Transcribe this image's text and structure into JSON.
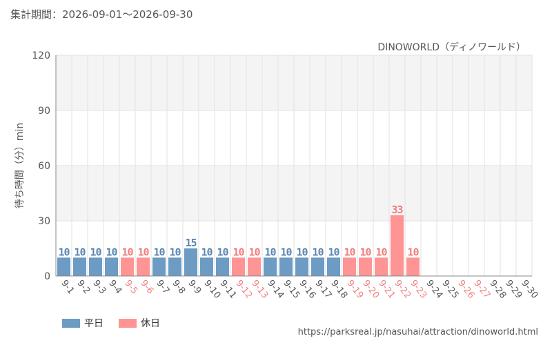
{
  "header": {
    "period_label": "集計期間：",
    "period_range": "2026-09-01～2026-09-30"
  },
  "attraction_name": "DINOWORLD（ディノワールド）",
  "legend": {
    "weekday_label": "平日",
    "holiday_label": "休日"
  },
  "footer_url": "https://parksreal.jp/nasuhai/attraction/dinoworld.html",
  "colors": {
    "weekday": "#6c9bc4",
    "holiday": "#ff9494",
    "weekday_text": "#5a86b0",
    "holiday_text": "#f07e7e",
    "band": "#f4f4f4",
    "grid": "#e2e2e2"
  },
  "chart_data": {
    "type": "bar",
    "title": "",
    "xlabel": "",
    "ylabel": "待ち時間（分）min",
    "ylim": [
      0,
      120
    ],
    "yticks": [
      "0",
      "30",
      "60",
      "90",
      "120"
    ],
    "categories": [
      "9-1",
      "9-2",
      "9-3",
      "9-4",
      "9-5",
      "9-6",
      "9-7",
      "9-8",
      "9-9",
      "9-10",
      "9-11",
      "9-12",
      "9-13",
      "9-14",
      "9-15",
      "9-16",
      "9-17",
      "9-18",
      "9-19",
      "9-20",
      "9-21",
      "9-22",
      "9-23",
      "9-24",
      "9-25",
      "9-26",
      "9-27",
      "9-28",
      "9-29",
      "9-30"
    ],
    "values": [
      10,
      10,
      10,
      10,
      10,
      10,
      10,
      10,
      15,
      10,
      10,
      10,
      10,
      10,
      10,
      10,
      10,
      10,
      10,
      10,
      10,
      33,
      10,
      null,
      null,
      null,
      null,
      null,
      null,
      null
    ],
    "day_types": [
      "weekday",
      "weekday",
      "weekday",
      "weekday",
      "holiday",
      "holiday",
      "weekday",
      "weekday",
      "weekday",
      "weekday",
      "weekday",
      "holiday",
      "holiday",
      "weekday",
      "weekday",
      "weekday",
      "weekday",
      "weekday",
      "holiday",
      "holiday",
      "holiday",
      "holiday",
      "holiday",
      "weekday",
      "weekday",
      "holiday",
      "holiday",
      "weekday",
      "weekday",
      "weekday"
    ]
  }
}
